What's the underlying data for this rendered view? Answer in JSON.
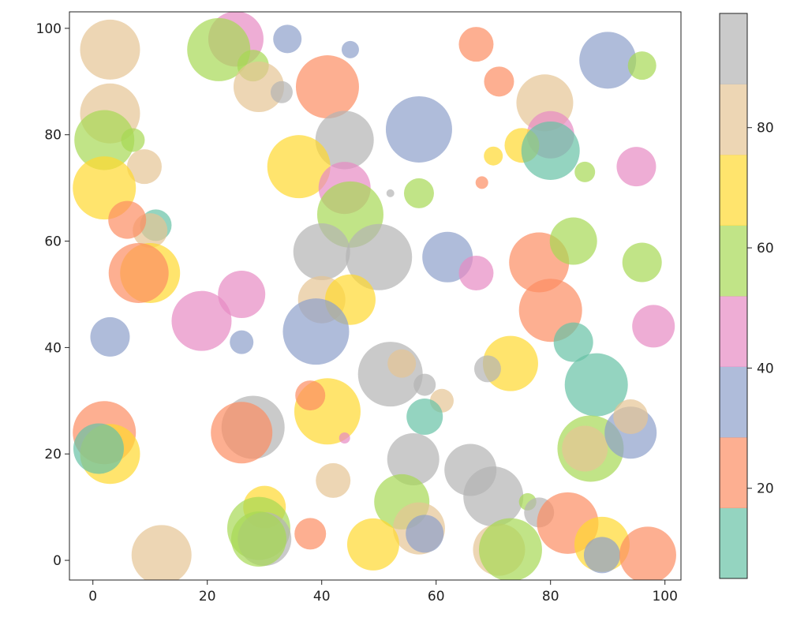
{
  "chart_data": {
    "type": "scatter",
    "title": "",
    "xlabel": "",
    "ylabel": "",
    "xlim": [
      -4.1,
      102.8
    ],
    "ylim": [
      -3.7,
      103.1
    ],
    "xticks": [
      0,
      20,
      40,
      60,
      80,
      100
    ],
    "yticks": [
      0,
      20,
      40,
      60,
      80,
      100
    ],
    "grid": false,
    "alpha": 0.7,
    "colormap": "Set2",
    "colormap_colors": [
      "#66c2a5",
      "#fc8d62",
      "#8da0cb",
      "#e78ac3",
      "#a6d854",
      "#ffd92f",
      "#e5c494",
      "#b3b3b3"
    ],
    "colorbar": {
      "range": [
        5,
        99
      ],
      "ticks": [
        20,
        40,
        60,
        80
      ],
      "placement": "right"
    },
    "points": [
      {
        "x": 3,
        "y": 96,
        "s": 1444,
        "c": 82
      },
      {
        "x": 3,
        "y": 84,
        "s": 1444,
        "c": 82
      },
      {
        "x": 2,
        "y": 79,
        "s": 1444,
        "c": 58
      },
      {
        "x": 7,
        "y": 79,
        "s": 225,
        "c": 58
      },
      {
        "x": 9,
        "y": 74,
        "s": 484,
        "c": 82
      },
      {
        "x": 2,
        "y": 70,
        "s": 1600,
        "c": 70
      },
      {
        "x": 11,
        "y": 63,
        "s": 400,
        "c": 11
      },
      {
        "x": 10,
        "y": 62,
        "s": 484,
        "c": 82
      },
      {
        "x": 6,
        "y": 64,
        "s": 576,
        "c": 23
      },
      {
        "x": 10,
        "y": 54,
        "s": 1444,
        "c": 70
      },
      {
        "x": 8,
        "y": 54,
        "s": 1444,
        "c": 23
      },
      {
        "x": 19,
        "y": 45,
        "s": 1444,
        "c": 46
      },
      {
        "x": 26,
        "y": 50,
        "s": 900,
        "c": 46
      },
      {
        "x": 3,
        "y": 42,
        "s": 625,
        "c": 35
      },
      {
        "x": 26,
        "y": 41,
        "s": 225,
        "c": 35
      },
      {
        "x": 25,
        "y": 98,
        "s": 1225,
        "c": 46
      },
      {
        "x": 22,
        "y": 96,
        "s": 1600,
        "c": 58
      },
      {
        "x": 28,
        "y": 93,
        "s": 400,
        "c": 58
      },
      {
        "x": 29,
        "y": 89,
        "s": 1024,
        "c": 82
      },
      {
        "x": 33,
        "y": 88,
        "s": 196,
        "c": 93
      },
      {
        "x": 34,
        "y": 98,
        "s": 324,
        "c": 35
      },
      {
        "x": 45,
        "y": 96,
        "s": 121,
        "c": 35
      },
      {
        "x": 41,
        "y": 89,
        "s": 1600,
        "c": 23
      },
      {
        "x": 44,
        "y": 79,
        "s": 1369,
        "c": 93
      },
      {
        "x": 36,
        "y": 74,
        "s": 1600,
        "c": 70
      },
      {
        "x": 44,
        "y": 70,
        "s": 1089,
        "c": 46
      },
      {
        "x": 45,
        "y": 65,
        "s": 1764,
        "c": 58
      },
      {
        "x": 40,
        "y": 58,
        "s": 1296,
        "c": 93
      },
      {
        "x": 50,
        "y": 57,
        "s": 1764,
        "c": 93
      },
      {
        "x": 40,
        "y": 49,
        "s": 900,
        "c": 82
      },
      {
        "x": 45,
        "y": 49,
        "s": 1024,
        "c": 70
      },
      {
        "x": 39,
        "y": 43,
        "s": 1764,
        "c": 35
      },
      {
        "x": 52,
        "y": 69,
        "s": 25,
        "c": 93
      },
      {
        "x": 57,
        "y": 69,
        "s": 361,
        "c": 58
      },
      {
        "x": 57,
        "y": 81,
        "s": 1764,
        "c": 35
      },
      {
        "x": 67,
        "y": 97,
        "s": 484,
        "c": 23
      },
      {
        "x": 71,
        "y": 90,
        "s": 361,
        "c": 23
      },
      {
        "x": 79,
        "y": 86,
        "s": 1296,
        "c": 82
      },
      {
        "x": 80,
        "y": 80,
        "s": 900,
        "c": 46
      },
      {
        "x": 75,
        "y": 78,
        "s": 484,
        "c": 70
      },
      {
        "x": 70,
        "y": 76,
        "s": 144,
        "c": 70
      },
      {
        "x": 80,
        "y": 77,
        "s": 1369,
        "c": 11
      },
      {
        "x": 86,
        "y": 73,
        "s": 169,
        "c": 58
      },
      {
        "x": 68,
        "y": 71,
        "s": 64,
        "c": 23
      },
      {
        "x": 90,
        "y": 94,
        "s": 1296,
        "c": 35
      },
      {
        "x": 96,
        "y": 93,
        "s": 324,
        "c": 58
      },
      {
        "x": 95,
        "y": 74,
        "s": 625,
        "c": 46
      },
      {
        "x": 62,
        "y": 57,
        "s": 1024,
        "c": 35
      },
      {
        "x": 67,
        "y": 54,
        "s": 484,
        "c": 46
      },
      {
        "x": 78,
        "y": 56,
        "s": 1444,
        "c": 23
      },
      {
        "x": 84,
        "y": 60,
        "s": 900,
        "c": 58
      },
      {
        "x": 96,
        "y": 56,
        "s": 625,
        "c": 58
      },
      {
        "x": 98,
        "y": 44,
        "s": 729,
        "c": 46
      },
      {
        "x": 80,
        "y": 47,
        "s": 1600,
        "c": 23
      },
      {
        "x": 84,
        "y": 41,
        "s": 625,
        "c": 11
      },
      {
        "x": 88,
        "y": 33,
        "s": 1600,
        "c": 11
      },
      {
        "x": 73,
        "y": 37,
        "s": 1225,
        "c": 70
      },
      {
        "x": 69,
        "y": 36,
        "s": 289,
        "c": 93
      },
      {
        "x": 52,
        "y": 35,
        "s": 1681,
        "c": 93
      },
      {
        "x": 54,
        "y": 37,
        "s": 324,
        "c": 82
      },
      {
        "x": 58,
        "y": 33,
        "s": 196,
        "c": 93
      },
      {
        "x": 61,
        "y": 30,
        "s": 225,
        "c": 82
      },
      {
        "x": 58,
        "y": 27,
        "s": 529,
        "c": 11
      },
      {
        "x": 56,
        "y": 19,
        "s": 1089,
        "c": 93
      },
      {
        "x": 66,
        "y": 17,
        "s": 1089,
        "c": 93
      },
      {
        "x": 70,
        "y": 12,
        "s": 1444,
        "c": 93
      },
      {
        "x": 54,
        "y": 11,
        "s": 1225,
        "c": 58
      },
      {
        "x": 57,
        "y": 6,
        "s": 1089,
        "c": 82
      },
      {
        "x": 58,
        "y": 5,
        "s": 576,
        "c": 35
      },
      {
        "x": 71,
        "y": 2,
        "s": 1089,
        "c": 82
      },
      {
        "x": 73,
        "y": 2,
        "s": 1600,
        "c": 58
      },
      {
        "x": 76,
        "y": 11,
        "s": 121,
        "c": 58
      },
      {
        "x": 78,
        "y": 9,
        "s": 361,
        "c": 93
      },
      {
        "x": 83,
        "y": 7,
        "s": 1521,
        "c": 23
      },
      {
        "x": 89,
        "y": 3,
        "s": 1225,
        "c": 70
      },
      {
        "x": 89,
        "y": 1,
        "s": 529,
        "c": 35
      },
      {
        "x": 97,
        "y": 1,
        "s": 1296,
        "c": 23
      },
      {
        "x": 87,
        "y": 21,
        "s": 1764,
        "c": 58
      },
      {
        "x": 86,
        "y": 21,
        "s": 841,
        "c": 82
      },
      {
        "x": 94,
        "y": 24,
        "s": 1089,
        "c": 35
      },
      {
        "x": 94,
        "y": 27,
        "s": 484,
        "c": 82
      },
      {
        "x": 41,
        "y": 28,
        "s": 1764,
        "c": 70
      },
      {
        "x": 38,
        "y": 31,
        "s": 361,
        "c": 23
      },
      {
        "x": 44,
        "y": 23,
        "s": 49,
        "c": 46
      },
      {
        "x": 28,
        "y": 25,
        "s": 1600,
        "c": 93
      },
      {
        "x": 26,
        "y": 24,
        "s": 1521,
        "c": 23
      },
      {
        "x": 42,
        "y": 15,
        "s": 484,
        "c": 82
      },
      {
        "x": 30,
        "y": 10,
        "s": 729,
        "c": 70
      },
      {
        "x": 29,
        "y": 6,
        "s": 1600,
        "c": 58
      },
      {
        "x": 30,
        "y": 4,
        "s": 1156,
        "c": 93
      },
      {
        "x": 29,
        "y": 4,
        "s": 1225,
        "c": 58
      },
      {
        "x": 38,
        "y": 5,
        "s": 400,
        "c": 23
      },
      {
        "x": 49,
        "y": 3,
        "s": 1089,
        "c": 70
      },
      {
        "x": 12,
        "y": 1,
        "s": 1444,
        "c": 82
      },
      {
        "x": 2,
        "y": 24,
        "s": 1600,
        "c": 23
      },
      {
        "x": 3,
        "y": 20,
        "s": 1444,
        "c": 70
      },
      {
        "x": 1,
        "y": 21,
        "s": 1024,
        "c": 11
      }
    ]
  }
}
